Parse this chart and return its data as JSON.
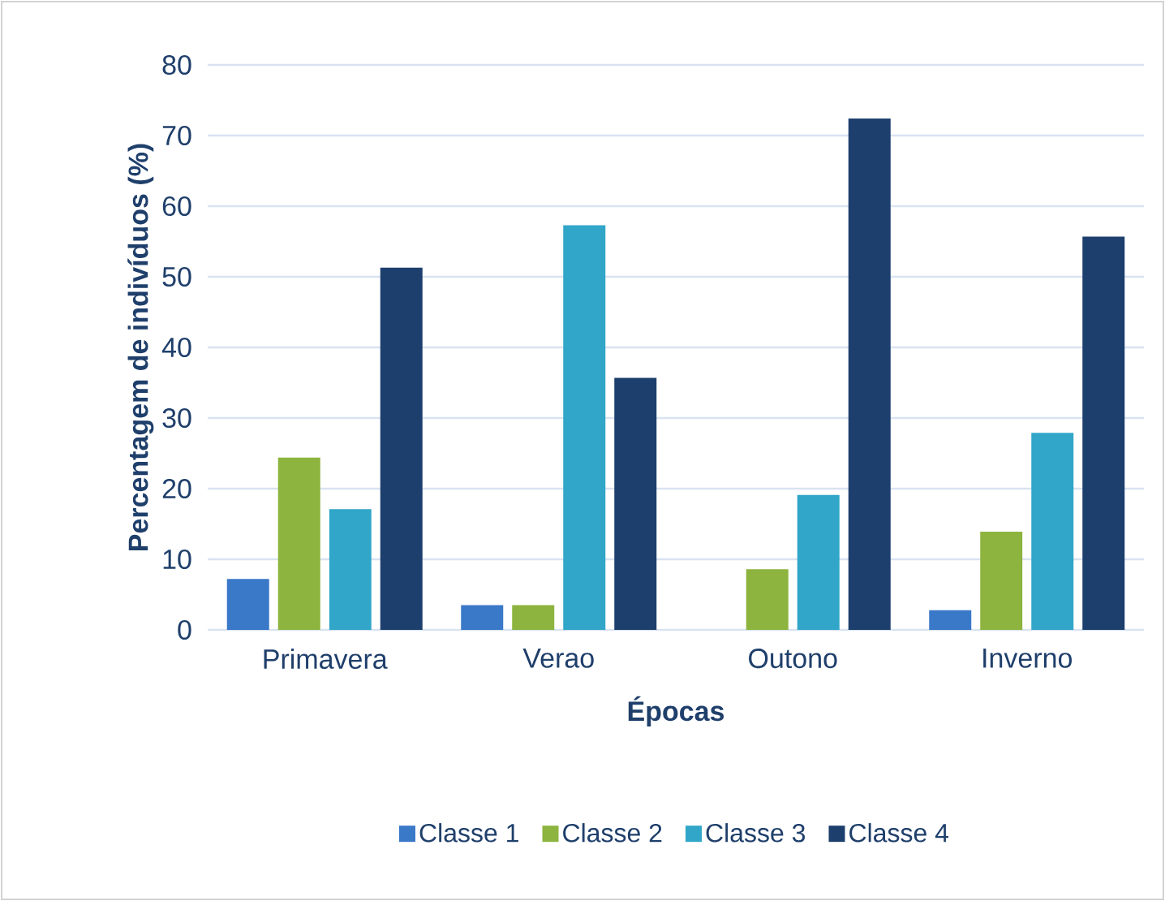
{
  "chart_data": {
    "type": "bar",
    "xlabel": "Épocas",
    "ylabel": "Percentagem de indivíduos (%)",
    "categories": [
      "Primavera",
      "Verao",
      "Outono",
      "Inverno"
    ],
    "series": [
      {
        "name": "Classe 1",
        "color": "#3a78c8",
        "values": [
          7.2,
          3.5,
          0,
          2.8
        ]
      },
      {
        "name": "Classe 2",
        "color": "#8db43e",
        "values": [
          24.4,
          3.5,
          8.6,
          13.9
        ]
      },
      {
        "name": "Classe 3",
        "color": "#31a6c8",
        "values": [
          17.1,
          57.3,
          19.1,
          27.9
        ]
      },
      {
        "name": "Classe 4",
        "color": "#1d3f6e",
        "values": [
          51.3,
          35.7,
          72.4,
          55.7
        ]
      }
    ],
    "ylim": [
      0,
      80
    ],
    "yticks": [
      0,
      10,
      20,
      30,
      40,
      50,
      60,
      70,
      80
    ],
    "grid": "y",
    "legend": "bottom"
  }
}
